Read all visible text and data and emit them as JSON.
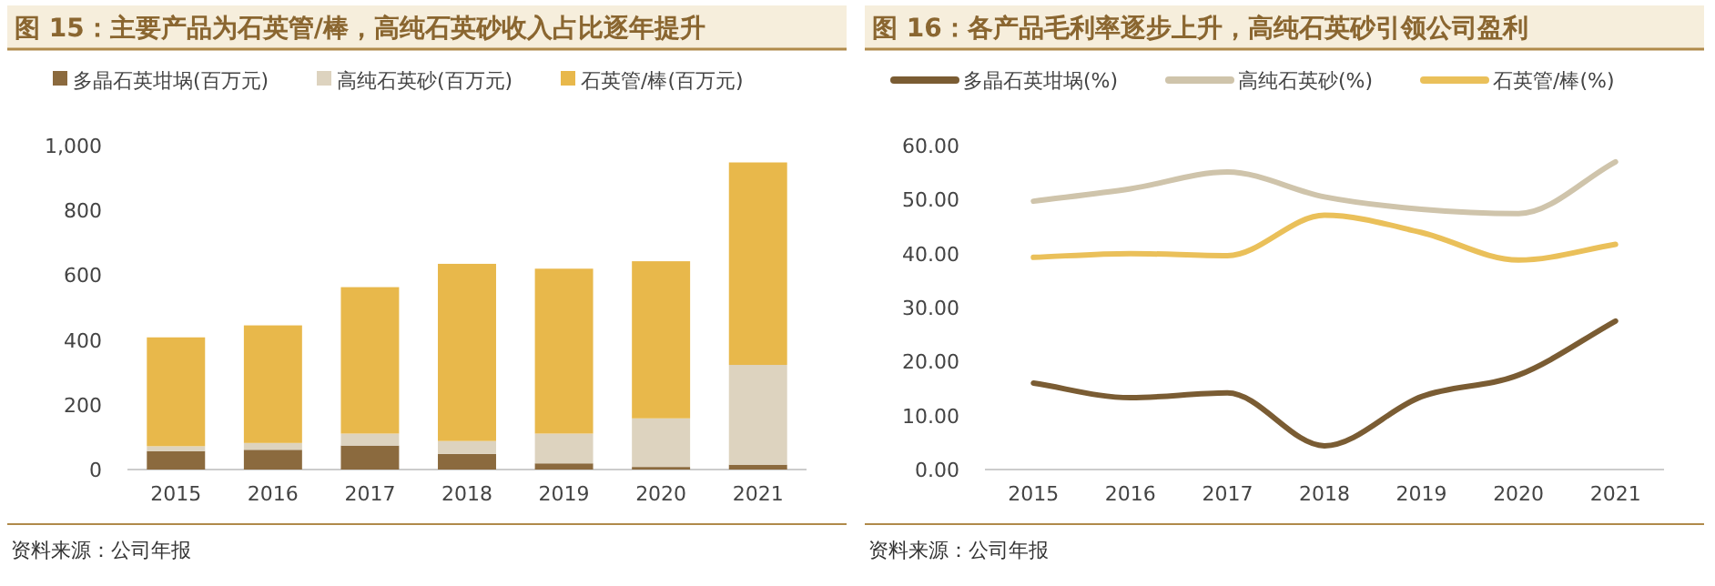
{
  "chart_data": [
    {
      "type": "bar",
      "title": "图 15：主要产品为石英管/棒，高纯石英砂收入占比逐年提升",
      "categories": [
        "2015",
        "2016",
        "2017",
        "2018",
        "2019",
        "2020",
        "2021"
      ],
      "stacked": true,
      "series": [
        {
          "name": "多晶石英坩埚(百万元)",
          "color": "#8b6a3e",
          "values": [
            57,
            61,
            74,
            48,
            19,
            8,
            15
          ]
        },
        {
          "name": "高纯石英砂(百万元)",
          "color": "#ddd3bf",
          "values": [
            15,
            21,
            37,
            40,
            92,
            150,
            308
          ]
        },
        {
          "name": "石英管/棒(百万元)",
          "color": "#e8b84b",
          "values": [
            336,
            363,
            452,
            547,
            509,
            485,
            625
          ]
        }
      ],
      "ylim": [
        0,
        1000
      ],
      "yticks": [
        0,
        200,
        400,
        600,
        800,
        {
          "value": 1000,
          "label": "1,000"
        }
      ],
      "grid": false,
      "legend": "top",
      "annotations": [
        "资料来源：公司年报"
      ]
    },
    {
      "type": "line",
      "title": "图 16：各产品毛利率逐步上升，高纯石英砂引领公司盈利",
      "categories": [
        "2015",
        "2016",
        "2017",
        "2018",
        "2019",
        "2020",
        "2021"
      ],
      "series": [
        {
          "name": "多晶石英坩埚(%)",
          "color": "#7a5c33",
          "values": [
            16.0,
            13.3,
            14.2,
            4.4,
            13.5,
            17.5,
            27.5
          ]
        },
        {
          "name": "高纯石英砂(%)",
          "color": "#cfc4ab",
          "values": [
            49.7,
            52.0,
            55.1,
            50.5,
            48.2,
            47.4,
            57.0
          ]
        },
        {
          "name": "石英管/棒(%)",
          "color": "#eac05a",
          "values": [
            39.3,
            40.0,
            39.6,
            47.1,
            43.9,
            38.8,
            41.7
          ]
        }
      ],
      "ylim": [
        0,
        60
      ],
      "yticks": [
        {
          "value": 0,
          "label": "0.00"
        },
        {
          "value": 10,
          "label": "10.00"
        },
        {
          "value": 20,
          "label": "20.00"
        },
        {
          "value": 30,
          "label": "30.00"
        },
        {
          "value": 40,
          "label": "40.00"
        },
        {
          "value": 50,
          "label": "50.00"
        },
        {
          "value": 60,
          "label": "60.00"
        }
      ],
      "grid": false,
      "legend": "top",
      "line_style": "solid",
      "marker": "none",
      "annotations": [
        "资料来源：公司年报"
      ]
    }
  ]
}
